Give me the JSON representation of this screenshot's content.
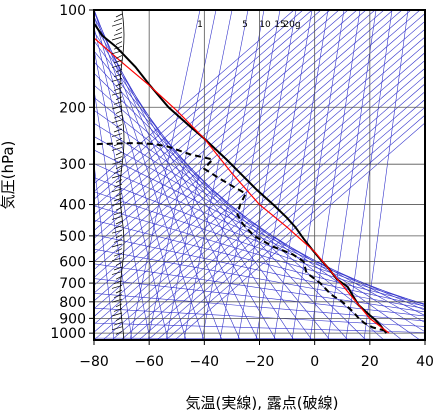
{
  "chart_data": {
    "type": "line",
    "title": "",
    "xlabel": "気温(実線), 露点(破線)",
    "ylabel": "気圧(hPa)",
    "xlim": [
      -80,
      40
    ],
    "ylim": [
      1050,
      100
    ],
    "y_scale": "log",
    "x_ticks": [
      -80,
      -60,
      -40,
      -20,
      0,
      20,
      40
    ],
    "x_tick_labels": [
      "−80",
      "−60",
      "−40",
      "−20",
      "0",
      "20",
      "40"
    ],
    "y_ticks": [
      100,
      200,
      300,
      400,
      500,
      600,
      700,
      800,
      900,
      1000
    ],
    "y_tick_labels": [
      "100",
      "200",
      "300",
      "400",
      "500",
      "600",
      "700",
      "800",
      "900",
      "1000"
    ],
    "grid": true,
    "mixing_ratio_labels": [
      "1",
      "5",
      "10",
      "15",
      "20g"
    ],
    "series": [
      {
        "key": "temperature",
        "style": "solid",
        "color": "#000000",
        "points": [
          [
            -82,
            100
          ],
          [
            -80,
            110
          ],
          [
            -77,
            120
          ],
          [
            -72,
            130
          ],
          [
            -65,
            150
          ],
          [
            -60,
            170
          ],
          [
            -53,
            200
          ],
          [
            -45,
            230
          ],
          [
            -40,
            250
          ],
          [
            -32,
            290
          ],
          [
            -27,
            320
          ],
          [
            -21,
            360
          ],
          [
            -15,
            400
          ],
          [
            -10,
            440
          ],
          [
            -7,
            470
          ],
          [
            -4,
            510
          ],
          [
            -1,
            550
          ],
          [
            2,
            590
          ],
          [
            5,
            630
          ],
          [
            8,
            680
          ],
          [
            12,
            720
          ],
          [
            14,
            770
          ],
          [
            16,
            820
          ],
          [
            18,
            850
          ],
          [
            20,
            880
          ],
          [
            22,
            910
          ],
          [
            24,
            950
          ],
          [
            25,
            975
          ],
          [
            26,
            1000
          ]
        ]
      },
      {
        "key": "dewpoint",
        "style": "dashed",
        "color": "#000000",
        "points": [
          [
            -79,
            260
          ],
          [
            -65,
            258
          ],
          [
            -58,
            260
          ],
          [
            -53,
            265
          ],
          [
            -45,
            280
          ],
          [
            -37,
            290
          ],
          [
            -40,
            310
          ],
          [
            -35,
            330
          ],
          [
            -30,
            350
          ],
          [
            -25,
            370
          ],
          [
            -27,
            400
          ],
          [
            -28,
            430
          ],
          [
            -26,
            460
          ],
          [
            -22,
            500
          ],
          [
            -15,
            540
          ],
          [
            -8,
            570
          ],
          [
            -4,
            600
          ],
          [
            -3,
            650
          ],
          [
            2,
            700
          ],
          [
            6,
            760
          ],
          [
            10,
            800
          ],
          [
            14,
            860
          ],
          [
            16,
            900
          ],
          [
            18,
            930
          ],
          [
            21,
            960
          ],
          [
            25,
            980
          ],
          [
            27,
            990
          ]
        ]
      },
      {
        "key": "reference",
        "style": "solid",
        "color": "#ff0000",
        "points": [
          [
            -80,
            122
          ],
          [
            -70,
            145
          ],
          [
            -60,
            171
          ],
          [
            -50,
            205
          ],
          [
            -40,
            250
          ],
          [
            -30,
            320
          ],
          [
            -20,
            400
          ],
          [
            -10,
            470
          ],
          [
            0,
            560
          ],
          [
            10,
            710
          ],
          [
            20,
            900
          ],
          [
            27,
            1000
          ]
        ]
      }
    ],
    "colors": {
      "background_lines": "#3333cc",
      "frame": "#000000"
    }
  }
}
